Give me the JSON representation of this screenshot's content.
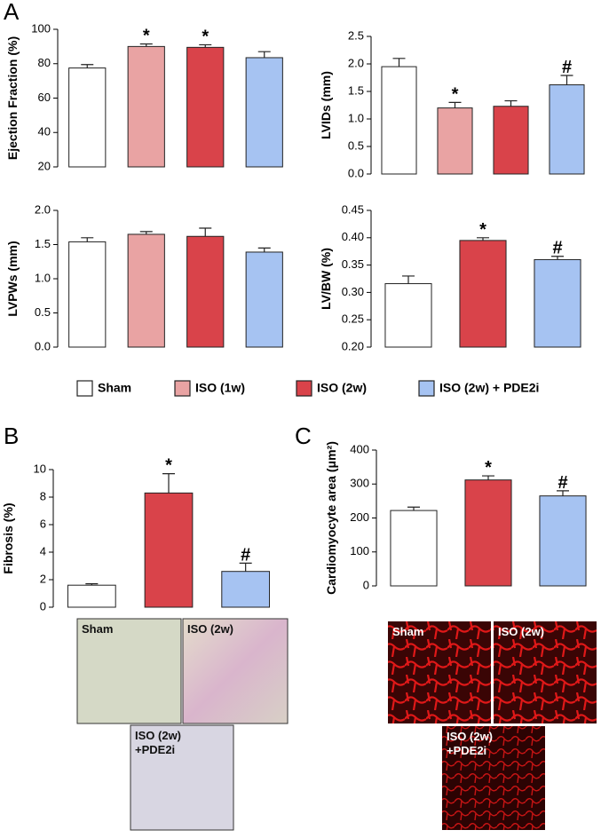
{
  "panel_labels": [
    "A",
    "B",
    "C"
  ],
  "legend": [
    {
      "name": "Sham",
      "color": "#ffffff"
    },
    {
      "name": "ISO (1w)",
      "color": "#e9a3a3"
    },
    {
      "name": "ISO (2w)",
      "color": "#d9434a"
    },
    {
      "name": "ISO (2w) + PDE2i",
      "color": "#a6c3f2"
    }
  ],
  "chart_data": [
    {
      "type": "bar",
      "ylabel": "Ejection Fraction (%)",
      "values": [
        77.5,
        90,
        89.5,
        83.5
      ],
      "errors": [
        2,
        1.5,
        1.5,
        3.5
      ],
      "colors": [
        "#ffffff",
        "#e9a3a3",
        "#d9434a",
        "#a6c3f2"
      ],
      "annotations": [
        null,
        "*",
        "*",
        null
      ],
      "ylim": [
        20,
        100
      ],
      "yticks": [
        20,
        40,
        60,
        80,
        100
      ]
    },
    {
      "type": "bar",
      "ylabel": "LVIDs (mm)",
      "values": [
        1.95,
        1.2,
        1.23,
        1.62
      ],
      "errors": [
        0.15,
        0.1,
        0.1,
        0.17
      ],
      "colors": [
        "#ffffff",
        "#e9a3a3",
        "#d9434a",
        "#a6c3f2"
      ],
      "annotations": [
        null,
        "*",
        null,
        "#"
      ],
      "ylim": [
        0,
        2.5
      ],
      "yticks": [
        {
          "value": 0,
          "label": "0.0"
        },
        0.5,
        {
          "value": 1,
          "label": "1.0"
        },
        1.5,
        {
          "value": 2,
          "label": "2.0"
        },
        2.5
      ]
    },
    {
      "type": "bar",
      "ylabel": "LVPWs (mm)",
      "values": [
        1.54,
        1.65,
        1.62,
        1.39
      ],
      "errors": [
        0.06,
        0.04,
        0.12,
        0.06
      ],
      "colors": [
        "#ffffff",
        "#e9a3a3",
        "#d9434a",
        "#a6c3f2"
      ],
      "annotations": [
        null,
        null,
        null,
        null
      ],
      "ylim": [
        0,
        2
      ],
      "yticks": [
        {
          "value": 0,
          "label": "0.0"
        },
        0.5,
        {
          "value": 1,
          "label": "1.0"
        },
        1.5,
        {
          "value": 2,
          "label": "2.0"
        }
      ]
    },
    {
      "type": "bar",
      "ylabel": "LV/BW (%)",
      "values": [
        0.316,
        0.395,
        0.36
      ],
      "errors": [
        0.014,
        0.005,
        0.006
      ],
      "colors": [
        "#ffffff",
        "#d9434a",
        "#a6c3f2"
      ],
      "annotations": [
        null,
        "*",
        "#"
      ],
      "ylim": [
        0.2,
        0.45
      ],
      "yticks": [
        {
          "value": 0.2,
          "label": "0.20"
        },
        0.25,
        {
          "value": 0.3,
          "label": "0.30"
        },
        0.35,
        {
          "value": 0.4,
          "label": "0.40"
        },
        0.45
      ]
    },
    {
      "type": "bar",
      "ylabel": "Fibrosis (%)",
      "values": [
        1.6,
        8.3,
        2.6
      ],
      "errors": [
        0.1,
        1.4,
        0.6
      ],
      "colors": [
        "#ffffff",
        "#d9434a",
        "#a6c3f2"
      ],
      "annotations": [
        null,
        "*",
        "#"
      ],
      "ylim": [
        0,
        10
      ],
      "yticks": [
        0,
        2,
        4,
        6,
        8,
        10
      ]
    },
    {
      "type": "bar",
      "ylabel": "Cardiomyocyte area (μm²)",
      "values": [
        222,
        312,
        265
      ],
      "errors": [
        10,
        12,
        15
      ],
      "colors": [
        "#ffffff",
        "#d9434a",
        "#a6c3f2"
      ],
      "annotations": [
        null,
        "*",
        "#"
      ],
      "ylim": [
        0,
        400
      ],
      "yticks": [
        0,
        100,
        200,
        300,
        400
      ]
    }
  ],
  "micrographs": {
    "fibrosis": [
      [
        "Sham"
      ],
      [
        "ISO (2w)"
      ],
      [
        "ISO (2w)",
        "+PDE2i"
      ]
    ],
    "cardiomyocyte": [
      [
        "Sham"
      ],
      [
        "ISO (2w)"
      ],
      [
        "ISO (2w)",
        "+PDE2i"
      ]
    ]
  }
}
